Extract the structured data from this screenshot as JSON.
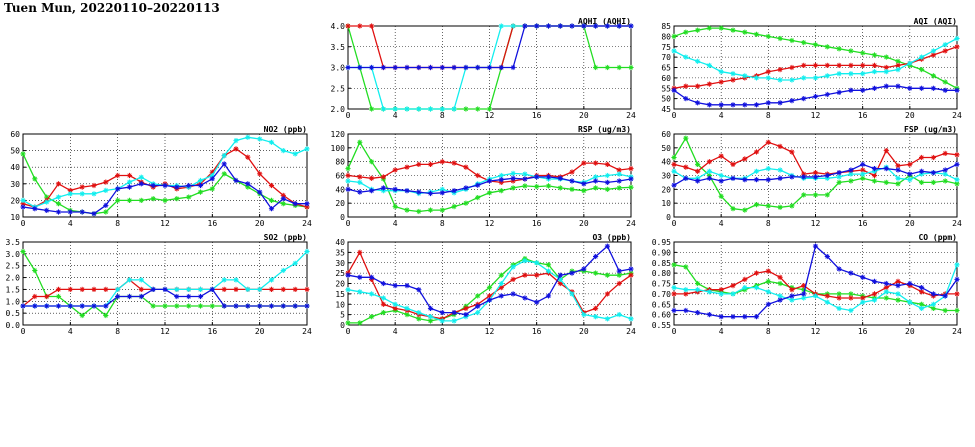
{
  "header": {
    "title": "Tuen Mun, 20220110–20220113"
  },
  "colors": {
    "green": "#22dd22",
    "red": "#e01010",
    "cyan": "#11eeee",
    "blue": "#1010dd",
    "grid": "#000000"
  },
  "chart_data": [
    {
      "type": "line",
      "title": "AQHI (AQHI)",
      "ylim": [
        2.0,
        4.0
      ],
      "yticks": [
        "2.0",
        "2.5",
        "3.0",
        "3.5",
        "4.0"
      ],
      "xlim": [
        0,
        24
      ],
      "xticks": [
        "0",
        "4",
        "8",
        "12",
        "16",
        "20",
        "24"
      ],
      "series": [
        {
          "color": "green",
          "values": [
            4,
            3,
            2,
            2,
            2,
            2,
            2,
            2,
            2,
            2,
            2,
            2,
            2,
            3,
            4,
            4,
            4,
            4,
            4,
            4,
            4,
            3,
            3,
            3,
            3
          ]
        },
        {
          "color": "red",
          "values": [
            4,
            4,
            4,
            3,
            3,
            3,
            3,
            3,
            3,
            3,
            3,
            3,
            3,
            3,
            4,
            4,
            4,
            4,
            4,
            4,
            4,
            4,
            4,
            4,
            4
          ]
        },
        {
          "color": "cyan",
          "values": [
            3,
            3,
            3,
            2,
            2,
            2,
            2,
            2,
            2,
            2,
            3,
            3,
            3,
            4,
            4,
            4,
            4,
            4,
            4,
            4,
            4,
            4,
            4,
            4,
            4
          ]
        },
        {
          "color": "blue",
          "values": [
            3,
            3,
            3,
            3,
            3,
            3,
            3,
            3,
            3,
            3,
            3,
            3,
            3,
            3,
            3,
            4,
            4,
            4,
            4,
            4,
            4,
            4,
            4,
            4,
            4
          ]
        }
      ]
    },
    {
      "type": "line",
      "title": "AQI (AQI)",
      "ylim": [
        45,
        85
      ],
      "yticks": [
        "45",
        "50",
        "55",
        "60",
        "65",
        "70",
        "75",
        "80",
        "85"
      ],
      "xlim": [
        0,
        24
      ],
      "xticks": [
        "0",
        "4",
        "8",
        "12",
        "16",
        "20",
        "24"
      ],
      "series": [
        {
          "color": "green",
          "values": [
            80,
            82,
            83,
            84,
            84,
            83,
            82,
            81,
            80,
            79,
            78,
            77,
            76,
            75,
            74,
            73,
            72,
            71,
            70,
            68,
            66,
            64,
            61,
            58,
            55
          ]
        },
        {
          "color": "red",
          "values": [
            55,
            56,
            56,
            57,
            58,
            59,
            60,
            61,
            63,
            64,
            65,
            66,
            66,
            66,
            66,
            66,
            66,
            66,
            65,
            66,
            67,
            69,
            71,
            73,
            75
          ]
        },
        {
          "color": "cyan",
          "values": [
            73,
            70,
            68,
            66,
            63,
            62,
            61,
            60,
            60,
            59,
            59,
            60,
            60,
            61,
            62,
            62,
            62,
            63,
            63,
            64,
            67,
            70,
            73,
            76,
            79
          ]
        },
        {
          "color": "blue",
          "values": [
            54,
            50,
            48,
            47,
            47,
            47,
            47,
            47,
            48,
            48,
            49,
            50,
            51,
            52,
            53,
            54,
            54,
            55,
            56,
            56,
            55,
            55,
            55,
            54,
            54
          ]
        }
      ]
    },
    {
      "type": "line",
      "title": "NO2 (ppb)",
      "ylim": [
        10,
        60
      ],
      "yticks": [
        "10",
        "20",
        "30",
        "40",
        "50",
        "60"
      ],
      "xlim": [
        0,
        24
      ],
      "xticks": [
        "0",
        "4",
        "8",
        "12",
        "16",
        "20",
        "24"
      ],
      "series": [
        {
          "color": "green",
          "values": [
            48,
            33,
            22,
            18,
            14,
            13,
            12,
            13,
            20,
            20,
            20,
            21,
            20,
            21,
            22,
            25,
            27,
            36,
            32,
            28,
            24,
            20,
            18,
            17,
            16
          ]
        },
        {
          "color": "red",
          "values": [
            18,
            16,
            20,
            30,
            26,
            28,
            29,
            31,
            35,
            35,
            31,
            28,
            30,
            27,
            28,
            30,
            37,
            47,
            51,
            46,
            36,
            29,
            23,
            18,
            16
          ]
        },
        {
          "color": "cyan",
          "values": [
            20,
            16,
            19,
            22,
            24,
            24,
            24,
            26,
            27,
            31,
            34,
            30,
            29,
            29,
            28,
            32,
            35,
            47,
            56,
            58,
            57,
            55,
            50,
            48,
            51
          ]
        },
        {
          "color": "blue",
          "values": [
            16,
            15,
            14,
            13,
            13,
            13,
            12,
            17,
            27,
            28,
            30,
            29,
            29,
            28,
            29,
            29,
            33,
            42,
            32,
            30,
            25,
            15,
            21,
            18,
            18
          ]
        }
      ]
    },
    {
      "type": "line",
      "title": "RSP (ug/m3)",
      "ylim": [
        0,
        120
      ],
      "yticks": [
        "0",
        "20",
        "40",
        "60",
        "80",
        "100",
        "120"
      ],
      "xlim": [
        0,
        24
      ],
      "xticks": [
        "0",
        "4",
        "8",
        "12",
        "16",
        "20",
        "24"
      ],
      "series": [
        {
          "color": "green",
          "values": [
            70,
            108,
            80,
            55,
            15,
            10,
            8,
            10,
            10,
            15,
            20,
            28,
            35,
            38,
            42,
            45,
            44,
            45,
            42,
            40,
            38,
            42,
            40,
            42,
            43
          ]
        },
        {
          "color": "red",
          "values": [
            60,
            58,
            56,
            58,
            68,
            72,
            76,
            76,
            80,
            78,
            72,
            60,
            52,
            50,
            52,
            55,
            60,
            60,
            58,
            65,
            78,
            78,
            76,
            68,
            70
          ]
        },
        {
          "color": "cyan",
          "values": [
            52,
            50,
            40,
            38,
            38,
            38,
            34,
            36,
            40,
            35,
            40,
            48,
            55,
            60,
            63,
            62,
            58,
            55,
            55,
            52,
            50,
            58,
            60,
            62,
            58
          ]
        },
        {
          "color": "blue",
          "values": [
            40,
            36,
            38,
            42,
            40,
            38,
            36,
            34,
            35,
            38,
            42,
            46,
            52,
            54,
            56,
            55,
            58,
            58,
            56,
            52,
            48,
            52,
            50,
            52,
            55
          ]
        }
      ]
    },
    {
      "type": "line",
      "title": "FSP (ug/m3)",
      "ylim": [
        0,
        60
      ],
      "yticks": [
        "0",
        "10",
        "20",
        "30",
        "40",
        "50",
        "60"
      ],
      "xlim": [
        0,
        24
      ],
      "xticks": [
        "0",
        "4",
        "8",
        "12",
        "16",
        "20",
        "24"
      ],
      "series": [
        {
          "color": "green",
          "values": [
            43,
            57,
            38,
            30,
            15,
            6,
            5,
            9,
            8,
            7,
            8,
            16,
            16,
            16,
            25,
            26,
            28,
            26,
            25,
            24,
            30,
            25,
            25,
            26,
            24
          ]
        },
        {
          "color": "red",
          "values": [
            38,
            36,
            33,
            40,
            44,
            38,
            42,
            47,
            54,
            51,
            47,
            31,
            32,
            31,
            32,
            33,
            34,
            30,
            48,
            37,
            38,
            43,
            43,
            46,
            45
          ]
        },
        {
          "color": "cyan",
          "values": [
            33,
            28,
            28,
            33,
            30,
            28,
            28,
            33,
            35,
            34,
            30,
            28,
            28,
            28,
            29,
            31,
            31,
            33,
            36,
            28,
            27,
            31,
            32,
            31,
            27
          ]
        },
        {
          "color": "blue",
          "values": [
            23,
            28,
            26,
            28,
            26,
            28,
            27,
            27,
            27,
            28,
            29,
            29,
            29,
            30,
            32,
            34,
            38,
            35,
            35,
            34,
            31,
            33,
            32,
            34,
            38
          ]
        }
      ]
    },
    {
      "type": "line",
      "title": "SO2 (ppb)",
      "ylim": [
        0.0,
        3.5
      ],
      "yticks": [
        "0.0",
        "0.5",
        "1.0",
        "1.5",
        "2.0",
        "2.5",
        "3.0",
        "3.5"
      ],
      "xlim": [
        0,
        24
      ],
      "xticks": [
        "0",
        "4",
        "8",
        "12",
        "16",
        "20",
        "24"
      ],
      "series": [
        {
          "color": "green",
          "values": [
            3.1,
            2.3,
            1.2,
            1.2,
            0.8,
            0.4,
            0.8,
            0.4,
            1.2,
            1.2,
            1.2,
            0.8,
            0.8,
            0.8,
            0.8,
            0.8,
            0.8,
            0.8,
            0.8,
            0.8,
            0.8,
            0.8,
            0.8,
            0.8,
            0.8
          ]
        },
        {
          "color": "red",
          "values": [
            0.8,
            1.2,
            1.2,
            1.5,
            1.5,
            1.5,
            1.5,
            1.5,
            1.5,
            1.9,
            1.5,
            1.5,
            1.5,
            1.5,
            1.5,
            1.5,
            1.5,
            1.5,
            1.5,
            1.5,
            1.5,
            1.5,
            1.5,
            1.5,
            1.5
          ]
        },
        {
          "color": "cyan",
          "values": [
            0.8,
            0.8,
            0.8,
            0.8,
            0.8,
            0.8,
            0.8,
            0.8,
            1.5,
            1.9,
            1.9,
            1.5,
            1.5,
            1.5,
            1.5,
            1.5,
            1.5,
            1.9,
            1.9,
            1.5,
            1.5,
            1.9,
            2.3,
            2.6,
            3.1
          ]
        },
        {
          "color": "blue",
          "values": [
            0.8,
            0.8,
            0.8,
            0.8,
            0.8,
            0.8,
            0.8,
            0.8,
            1.2,
            1.2,
            1.2,
            1.5,
            1.5,
            1.2,
            1.2,
            1.2,
            1.5,
            0.8,
            0.8,
            0.8,
            0.8,
            0.8,
            0.8,
            0.8,
            0.8
          ]
        }
      ]
    },
    {
      "type": "line",
      "title": "O3 (ppb)",
      "ylim": [
        0,
        40
      ],
      "yticks": [
        "0",
        "5",
        "10",
        "15",
        "20",
        "25",
        "30",
        "35",
        "40"
      ],
      "xlim": [
        0,
        24
      ],
      "xticks": [
        "0",
        "4",
        "8",
        "12",
        "16",
        "20",
        "24"
      ],
      "series": [
        {
          "color": "green",
          "values": [
            1,
            1,
            4,
            6,
            7,
            5,
            3,
            2,
            3,
            5,
            9,
            14,
            18,
            24,
            29,
            32,
            30,
            29,
            22,
            26,
            26,
            25,
            24,
            24,
            25
          ]
        },
        {
          "color": "red",
          "values": [
            25,
            35,
            22,
            10,
            8,
            7,
            5,
            4,
            3,
            6,
            8,
            10,
            14,
            18,
            22,
            24,
            24,
            25,
            20,
            16,
            6,
            8,
            15,
            20,
            24
          ]
        },
        {
          "color": "cyan",
          "values": [
            17,
            16,
            15,
            13,
            10,
            8,
            6,
            4,
            2,
            2,
            4,
            6,
            12,
            20,
            28,
            31,
            30,
            26,
            22,
            15,
            5,
            4,
            3,
            5,
            3
          ]
        },
        {
          "color": "blue",
          "values": [
            24,
            23,
            23,
            20,
            19,
            19,
            17,
            8,
            6,
            6,
            5,
            9,
            12,
            14,
            15,
            13,
            11,
            14,
            24,
            25,
            27,
            33,
            38,
            26,
            27
          ]
        }
      ]
    },
    {
      "type": "line",
      "title": "CO (ppm)",
      "ylim": [
        0.55,
        0.95
      ],
      "yticks": [
        "0.55",
        "0.60",
        "0.65",
        "0.70",
        "0.75",
        "0.80",
        "0.85",
        "0.90",
        "0.95"
      ],
      "xlim": [
        0,
        24
      ],
      "xticks": [
        "0",
        "4",
        "8",
        "12",
        "16",
        "20",
        "24"
      ],
      "series": [
        {
          "color": "green",
          "values": [
            0.84,
            0.83,
            0.75,
            0.72,
            0.71,
            0.7,
            0.72,
            0.74,
            0.76,
            0.75,
            0.73,
            0.72,
            0.7,
            0.7,
            0.7,
            0.7,
            0.69,
            0.68,
            0.68,
            0.67,
            0.66,
            0.65,
            0.63,
            0.62,
            0.62
          ]
        },
        {
          "color": "red",
          "values": [
            0.7,
            0.7,
            0.71,
            0.72,
            0.72,
            0.74,
            0.77,
            0.8,
            0.81,
            0.78,
            0.72,
            0.74,
            0.7,
            0.69,
            0.68,
            0.68,
            0.68,
            0.7,
            0.73,
            0.76,
            0.74,
            0.71,
            0.69,
            0.7,
            0.7
          ]
        },
        {
          "color": "cyan",
          "values": [
            0.73,
            0.72,
            0.72,
            0.71,
            0.7,
            0.7,
            0.73,
            0.73,
            0.71,
            0.69,
            0.67,
            0.68,
            0.69,
            0.66,
            0.63,
            0.62,
            0.66,
            0.67,
            0.71,
            0.7,
            0.66,
            0.63,
            0.65,
            0.69,
            0.84
          ]
        },
        {
          "color": "blue",
          "values": [
            0.62,
            0.62,
            0.61,
            0.6,
            0.59,
            0.59,
            0.59,
            0.59,
            0.65,
            0.67,
            0.69,
            0.7,
            0.93,
            0.88,
            0.82,
            0.8,
            0.78,
            0.76,
            0.75,
            0.74,
            0.75,
            0.73,
            0.7,
            0.69,
            0.77
          ]
        }
      ]
    }
  ]
}
